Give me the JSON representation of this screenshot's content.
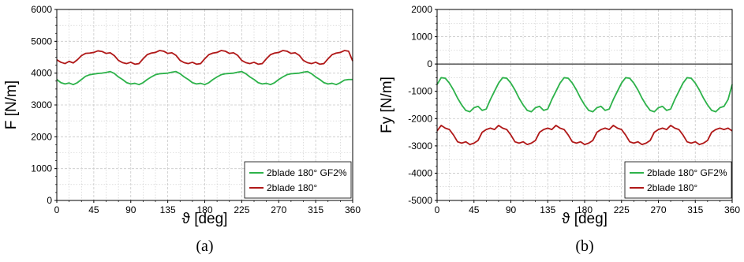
{
  "colors": {
    "green": "#2db24a",
    "red": "#b01818",
    "grid": "#c8c8c8"
  },
  "chart_data": [
    {
      "type": "line",
      "caption": "(a)",
      "xlabel": "ϑ [deg]",
      "ylabel": "F [N/m]",
      "xlim": [
        0,
        360
      ],
      "ylim": [
        0,
        6000
      ],
      "xticks": [
        0,
        45,
        90,
        135,
        180,
        225,
        270,
        315,
        360
      ],
      "yticks": [
        0,
        1000,
        2000,
        3000,
        4000,
        5000,
        6000
      ],
      "zero_line": false,
      "grid": true,
      "legend_position": "bottom-right",
      "series": [
        {
          "name": "2blade 180° GF2%",
          "color": "#2db24a",
          "x": [
            0,
            5,
            10,
            15,
            20,
            25,
            30,
            35,
            40,
            45,
            50,
            55,
            60,
            65,
            70,
            75,
            80,
            85,
            90,
            95,
            100,
            105,
            110,
            115,
            120,
            125,
            130,
            135,
            140,
            145,
            150,
            155,
            160,
            165,
            170,
            175,
            180,
            185,
            190,
            195,
            200,
            205,
            210,
            215,
            220,
            225,
            230,
            235,
            240,
            245,
            250,
            255,
            260,
            265,
            270,
            275,
            280,
            285,
            290,
            295,
            300,
            305,
            310,
            315,
            320,
            325,
            330,
            335,
            340,
            345,
            350,
            355,
            360
          ],
          "y": [
            3800,
            3700,
            3660,
            3690,
            3640,
            3700,
            3800,
            3900,
            3950,
            3970,
            3990,
            4000,
            4020,
            4050,
            3990,
            3880,
            3800,
            3700,
            3660,
            3680,
            3640,
            3700,
            3800,
            3880,
            3950,
            3980,
            3990,
            4000,
            4030,
            4050,
            3980,
            3880,
            3800,
            3700,
            3660,
            3680,
            3640,
            3700,
            3800,
            3880,
            3950,
            3980,
            3990,
            4000,
            4030,
            4050,
            3980,
            3880,
            3800,
            3700,
            3660,
            3680,
            3640,
            3700,
            3800,
            3880,
            3950,
            3980,
            3990,
            4000,
            4030,
            4050,
            3980,
            3880,
            3800,
            3700,
            3660,
            3680,
            3640,
            3700,
            3780,
            3800,
            3800
          ]
        },
        {
          "name": "2blade 180°",
          "color": "#b01818",
          "x": [
            0,
            5,
            10,
            15,
            20,
            25,
            30,
            35,
            40,
            45,
            50,
            55,
            60,
            65,
            70,
            75,
            80,
            85,
            90,
            95,
            100,
            105,
            110,
            115,
            120,
            125,
            130,
            135,
            140,
            145,
            150,
            155,
            160,
            165,
            170,
            175,
            180,
            185,
            190,
            195,
            200,
            205,
            210,
            215,
            220,
            225,
            230,
            235,
            240,
            245,
            250,
            255,
            260,
            265,
            270,
            275,
            280,
            285,
            290,
            295,
            300,
            305,
            310,
            315,
            320,
            325,
            330,
            335,
            340,
            345,
            350,
            355,
            360
          ],
          "y": [
            4420,
            4340,
            4300,
            4370,
            4320,
            4420,
            4550,
            4620,
            4630,
            4650,
            4700,
            4680,
            4620,
            4640,
            4550,
            4400,
            4330,
            4300,
            4340,
            4280,
            4300,
            4450,
            4580,
            4630,
            4650,
            4710,
            4690,
            4620,
            4640,
            4560,
            4400,
            4330,
            4300,
            4340,
            4280,
            4300,
            4450,
            4580,
            4630,
            4650,
            4710,
            4690,
            4620,
            4640,
            4560,
            4400,
            4330,
            4300,
            4340,
            4280,
            4300,
            4450,
            4580,
            4630,
            4650,
            4710,
            4690,
            4620,
            4640,
            4560,
            4400,
            4330,
            4300,
            4340,
            4280,
            4300,
            4450,
            4580,
            4630,
            4650,
            4710,
            4690,
            4380
          ]
        }
      ]
    },
    {
      "type": "line",
      "caption": "(b)",
      "xlabel": "ϑ [deg]",
      "ylabel": "Fy [N/m]",
      "xlim": [
        0,
        360
      ],
      "ylim": [
        -5000,
        2000
      ],
      "xticks": [
        0,
        45,
        90,
        135,
        180,
        225,
        270,
        315,
        360
      ],
      "yticks": [
        -5000,
        -4000,
        -3000,
        -2000,
        -1000,
        0,
        1000,
        2000
      ],
      "zero_line": true,
      "grid": true,
      "legend_position": "bottom-right",
      "series": [
        {
          "name": "2blade 180° GF2%",
          "color": "#2db24a",
          "x": [
            0,
            5,
            10,
            15,
            20,
            25,
            30,
            35,
            40,
            45,
            50,
            55,
            60,
            65,
            70,
            75,
            80,
            85,
            90,
            95,
            100,
            105,
            110,
            115,
            120,
            125,
            130,
            135,
            140,
            145,
            150,
            155,
            160,
            165,
            170,
            175,
            180,
            185,
            190,
            195,
            200,
            205,
            210,
            215,
            220,
            225,
            230,
            235,
            240,
            245,
            250,
            255,
            260,
            265,
            270,
            275,
            280,
            285,
            290,
            295,
            300,
            305,
            310,
            315,
            320,
            325,
            330,
            335,
            340,
            345,
            350,
            355,
            360
          ],
          "y": [
            -750,
            -500,
            -520,
            -700,
            -950,
            -1250,
            -1500,
            -1700,
            -1750,
            -1600,
            -1550,
            -1700,
            -1650,
            -1300,
            -1000,
            -700,
            -500,
            -520,
            -700,
            -950,
            -1250,
            -1500,
            -1700,
            -1750,
            -1600,
            -1550,
            -1700,
            -1650,
            -1300,
            -1000,
            -700,
            -500,
            -520,
            -700,
            -950,
            -1250,
            -1500,
            -1700,
            -1750,
            -1600,
            -1550,
            -1700,
            -1650,
            -1300,
            -1000,
            -700,
            -500,
            -520,
            -700,
            -950,
            -1250,
            -1500,
            -1700,
            -1750,
            -1600,
            -1550,
            -1700,
            -1650,
            -1300,
            -1000,
            -700,
            -500,
            -520,
            -700,
            -950,
            -1250,
            -1500,
            -1700,
            -1750,
            -1600,
            -1550,
            -1300,
            -750
          ]
        },
        {
          "name": "2blade 180°",
          "color": "#b01818",
          "x": [
            0,
            5,
            10,
            15,
            20,
            25,
            30,
            35,
            40,
            45,
            50,
            55,
            60,
            65,
            70,
            75,
            80,
            85,
            90,
            95,
            100,
            105,
            110,
            115,
            120,
            125,
            130,
            135,
            140,
            145,
            150,
            155,
            160,
            165,
            170,
            175,
            180,
            185,
            190,
            195,
            200,
            205,
            210,
            215,
            220,
            225,
            230,
            235,
            240,
            245,
            250,
            255,
            260,
            265,
            270,
            275,
            280,
            285,
            290,
            295,
            300,
            305,
            310,
            315,
            320,
            325,
            330,
            335,
            340,
            345,
            350,
            355,
            360
          ],
          "y": [
            -2450,
            -2250,
            -2350,
            -2400,
            -2600,
            -2850,
            -2900,
            -2850,
            -2950,
            -2900,
            -2800,
            -2500,
            -2400,
            -2350,
            -2400,
            -2250,
            -2350,
            -2400,
            -2600,
            -2850,
            -2900,
            -2850,
            -2950,
            -2900,
            -2800,
            -2500,
            -2400,
            -2350,
            -2400,
            -2250,
            -2350,
            -2400,
            -2600,
            -2850,
            -2900,
            -2850,
            -2950,
            -2900,
            -2800,
            -2500,
            -2400,
            -2350,
            -2400,
            -2250,
            -2350,
            -2400,
            -2600,
            -2850,
            -2900,
            -2850,
            -2950,
            -2900,
            -2800,
            -2500,
            -2400,
            -2350,
            -2400,
            -2250,
            -2350,
            -2400,
            -2600,
            -2850,
            -2900,
            -2850,
            -2950,
            -2900,
            -2800,
            -2500,
            -2400,
            -2350,
            -2400,
            -2350,
            -2450
          ]
        }
      ]
    }
  ]
}
